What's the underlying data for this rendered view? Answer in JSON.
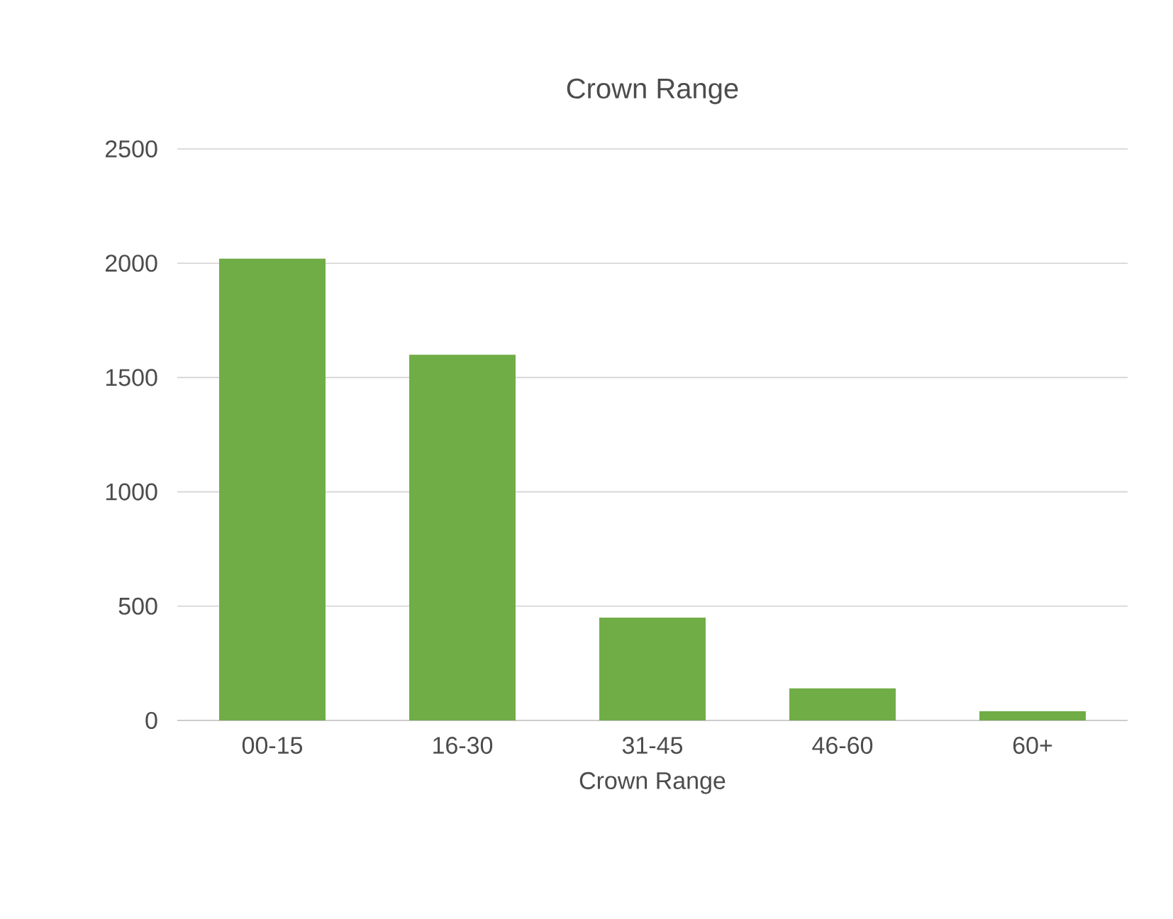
{
  "chart_data": {
    "type": "bar",
    "title": "Crown Range",
    "xlabel": "Crown Range",
    "categories": [
      "00-15",
      "16-30",
      "31-45",
      "46-60",
      "60+"
    ],
    "values": [
      2020,
      1600,
      450,
      140,
      40
    ],
    "color": "#70ad47",
    "ylim": [
      0,
      2500
    ],
    "yticks": [
      0,
      500,
      1000,
      1500,
      2000,
      2500
    ],
    "grid": "y"
  }
}
